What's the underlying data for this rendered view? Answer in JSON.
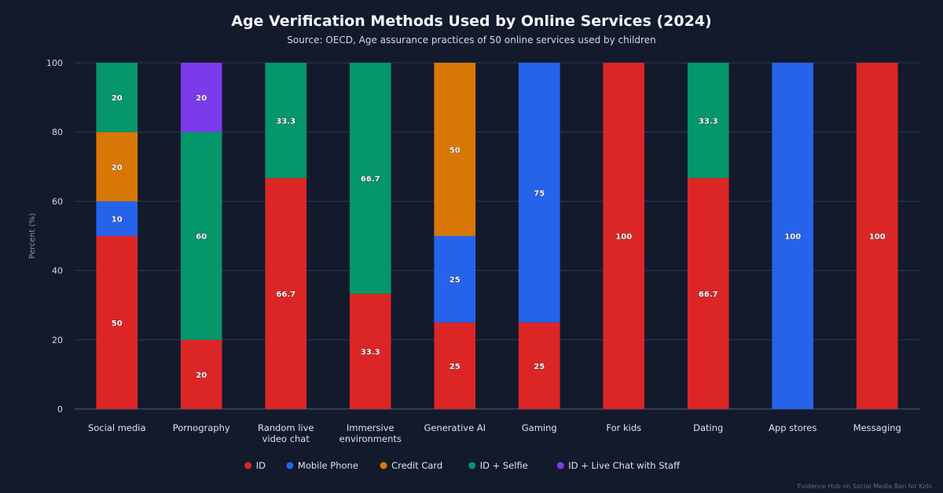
{
  "title": "Age Verification Methods Used by Online Services (2024)",
  "subtitle": "Source: OECD, Age assurance practices of 50 online services used by children",
  "watermark": "Evidence Hub on Social Media Ban for Kids",
  "chart_data": {
    "type": "bar",
    "stacked": true,
    "title": "Age Verification Methods Used by Online Services (2024)",
    "subtitle": "Source: OECD, Age assurance practices of 50 online services used by children",
    "xlabel": "",
    "ylabel": "Percent (%)",
    "ylim": [
      0,
      100
    ],
    "yticks": [
      0,
      20,
      40,
      60,
      80,
      100
    ],
    "grid": true,
    "legend_position": "bottom",
    "categories": [
      [
        "Social media"
      ],
      [
        "Pornography"
      ],
      [
        "Random live",
        "video chat"
      ],
      [
        "Immersive",
        "environments"
      ],
      [
        "Generative AI"
      ],
      [
        "Gaming"
      ],
      [
        "For kids"
      ],
      [
        "Dating"
      ],
      [
        "App stores"
      ],
      [
        "Messaging"
      ]
    ],
    "series": [
      {
        "name": "ID",
        "color": "#dc2626",
        "values": [
          50,
          20,
          66.7,
          33.3,
          25,
          25,
          100,
          66.7,
          0,
          100
        ]
      },
      {
        "name": "Mobile Phone",
        "color": "#2563eb",
        "values": [
          10,
          0,
          0,
          0,
          25,
          75,
          0,
          0,
          100,
          0
        ]
      },
      {
        "name": "Credit Card",
        "color": "#d97706",
        "values": [
          20,
          0,
          0,
          0,
          50,
          0,
          0,
          0,
          0,
          0
        ]
      },
      {
        "name": "ID + Selfie",
        "color": "#059669",
        "values": [
          20,
          60,
          33.3,
          66.7,
          0,
          0,
          0,
          33.3,
          0,
          0
        ]
      },
      {
        "name": "ID + Live Chat with Staff",
        "color": "#7c3aed",
        "values": [
          0,
          20,
          0,
          0,
          0,
          0,
          0,
          0,
          0,
          0
        ]
      }
    ],
    "colors": {
      "background": "#121a2c",
      "grid": "#2e3a52",
      "text": "#e6e9ef"
    }
  }
}
